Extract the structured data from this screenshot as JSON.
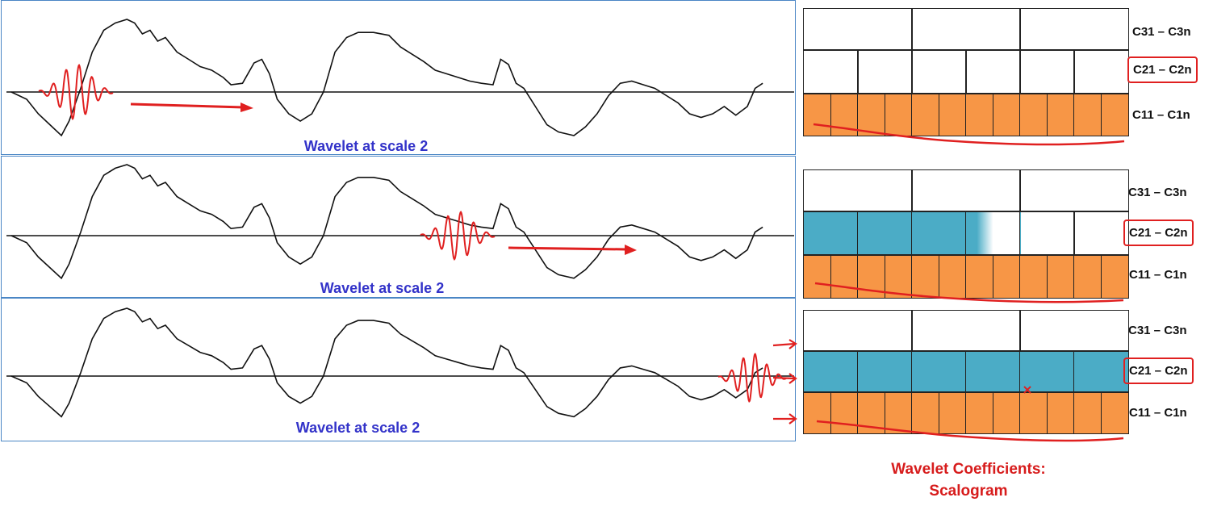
{
  "panels": [
    {
      "caption": "Wavelet at scale 2"
    },
    {
      "caption": "Wavelet at scale 2"
    },
    {
      "caption": "Wavelet at scale 2"
    }
  ],
  "scalograms": [
    {
      "rows": [
        {
          "label": "C31 – C3n",
          "highlighted": false,
          "cells": 3,
          "filled_cells": 0,
          "fill": "none"
        },
        {
          "label": "C21 – C2n",
          "highlighted": true,
          "cells": 6,
          "filled_cells": 0,
          "fill": "#4bacc6"
        },
        {
          "label": "C11 – C1n",
          "highlighted": false,
          "cells": 12,
          "filled_cells": 12,
          "fill": "#f79646"
        }
      ]
    },
    {
      "rows": [
        {
          "label": "C31 – C3n",
          "highlighted": false,
          "cells": 3,
          "filled_cells": 0,
          "fill": "none"
        },
        {
          "label": "C21 – C2n",
          "highlighted": true,
          "cells": 6,
          "filled_cells": 3.5,
          "fill": "#4bacc6"
        },
        {
          "label": "C11 – C1n",
          "highlighted": false,
          "cells": 12,
          "filled_cells": 12,
          "fill": "#f79646"
        }
      ]
    },
    {
      "rows": [
        {
          "label": "C31 – C3n",
          "highlighted": false,
          "cells": 3,
          "filled_cells": 0,
          "fill": "none"
        },
        {
          "label": "C21 – C2n",
          "highlighted": true,
          "cells": 6,
          "filled_cells": 6,
          "fill": "#4bacc6"
        },
        {
          "label": "C11 – C1n",
          "highlighted": false,
          "cells": 12,
          "filled_cells": 12,
          "fill": "#f79646"
        }
      ]
    }
  ],
  "footer": {
    "line1": "Wavelet Coefficients:",
    "line2": "Scalogram"
  },
  "colors": {
    "panel_border": "#4a86c5",
    "caption": "#3333c9",
    "wavelet": "#e02020",
    "annotation": "#e02020",
    "level1_fill": "#f79646",
    "level2_fill": "#4bacc6"
  }
}
